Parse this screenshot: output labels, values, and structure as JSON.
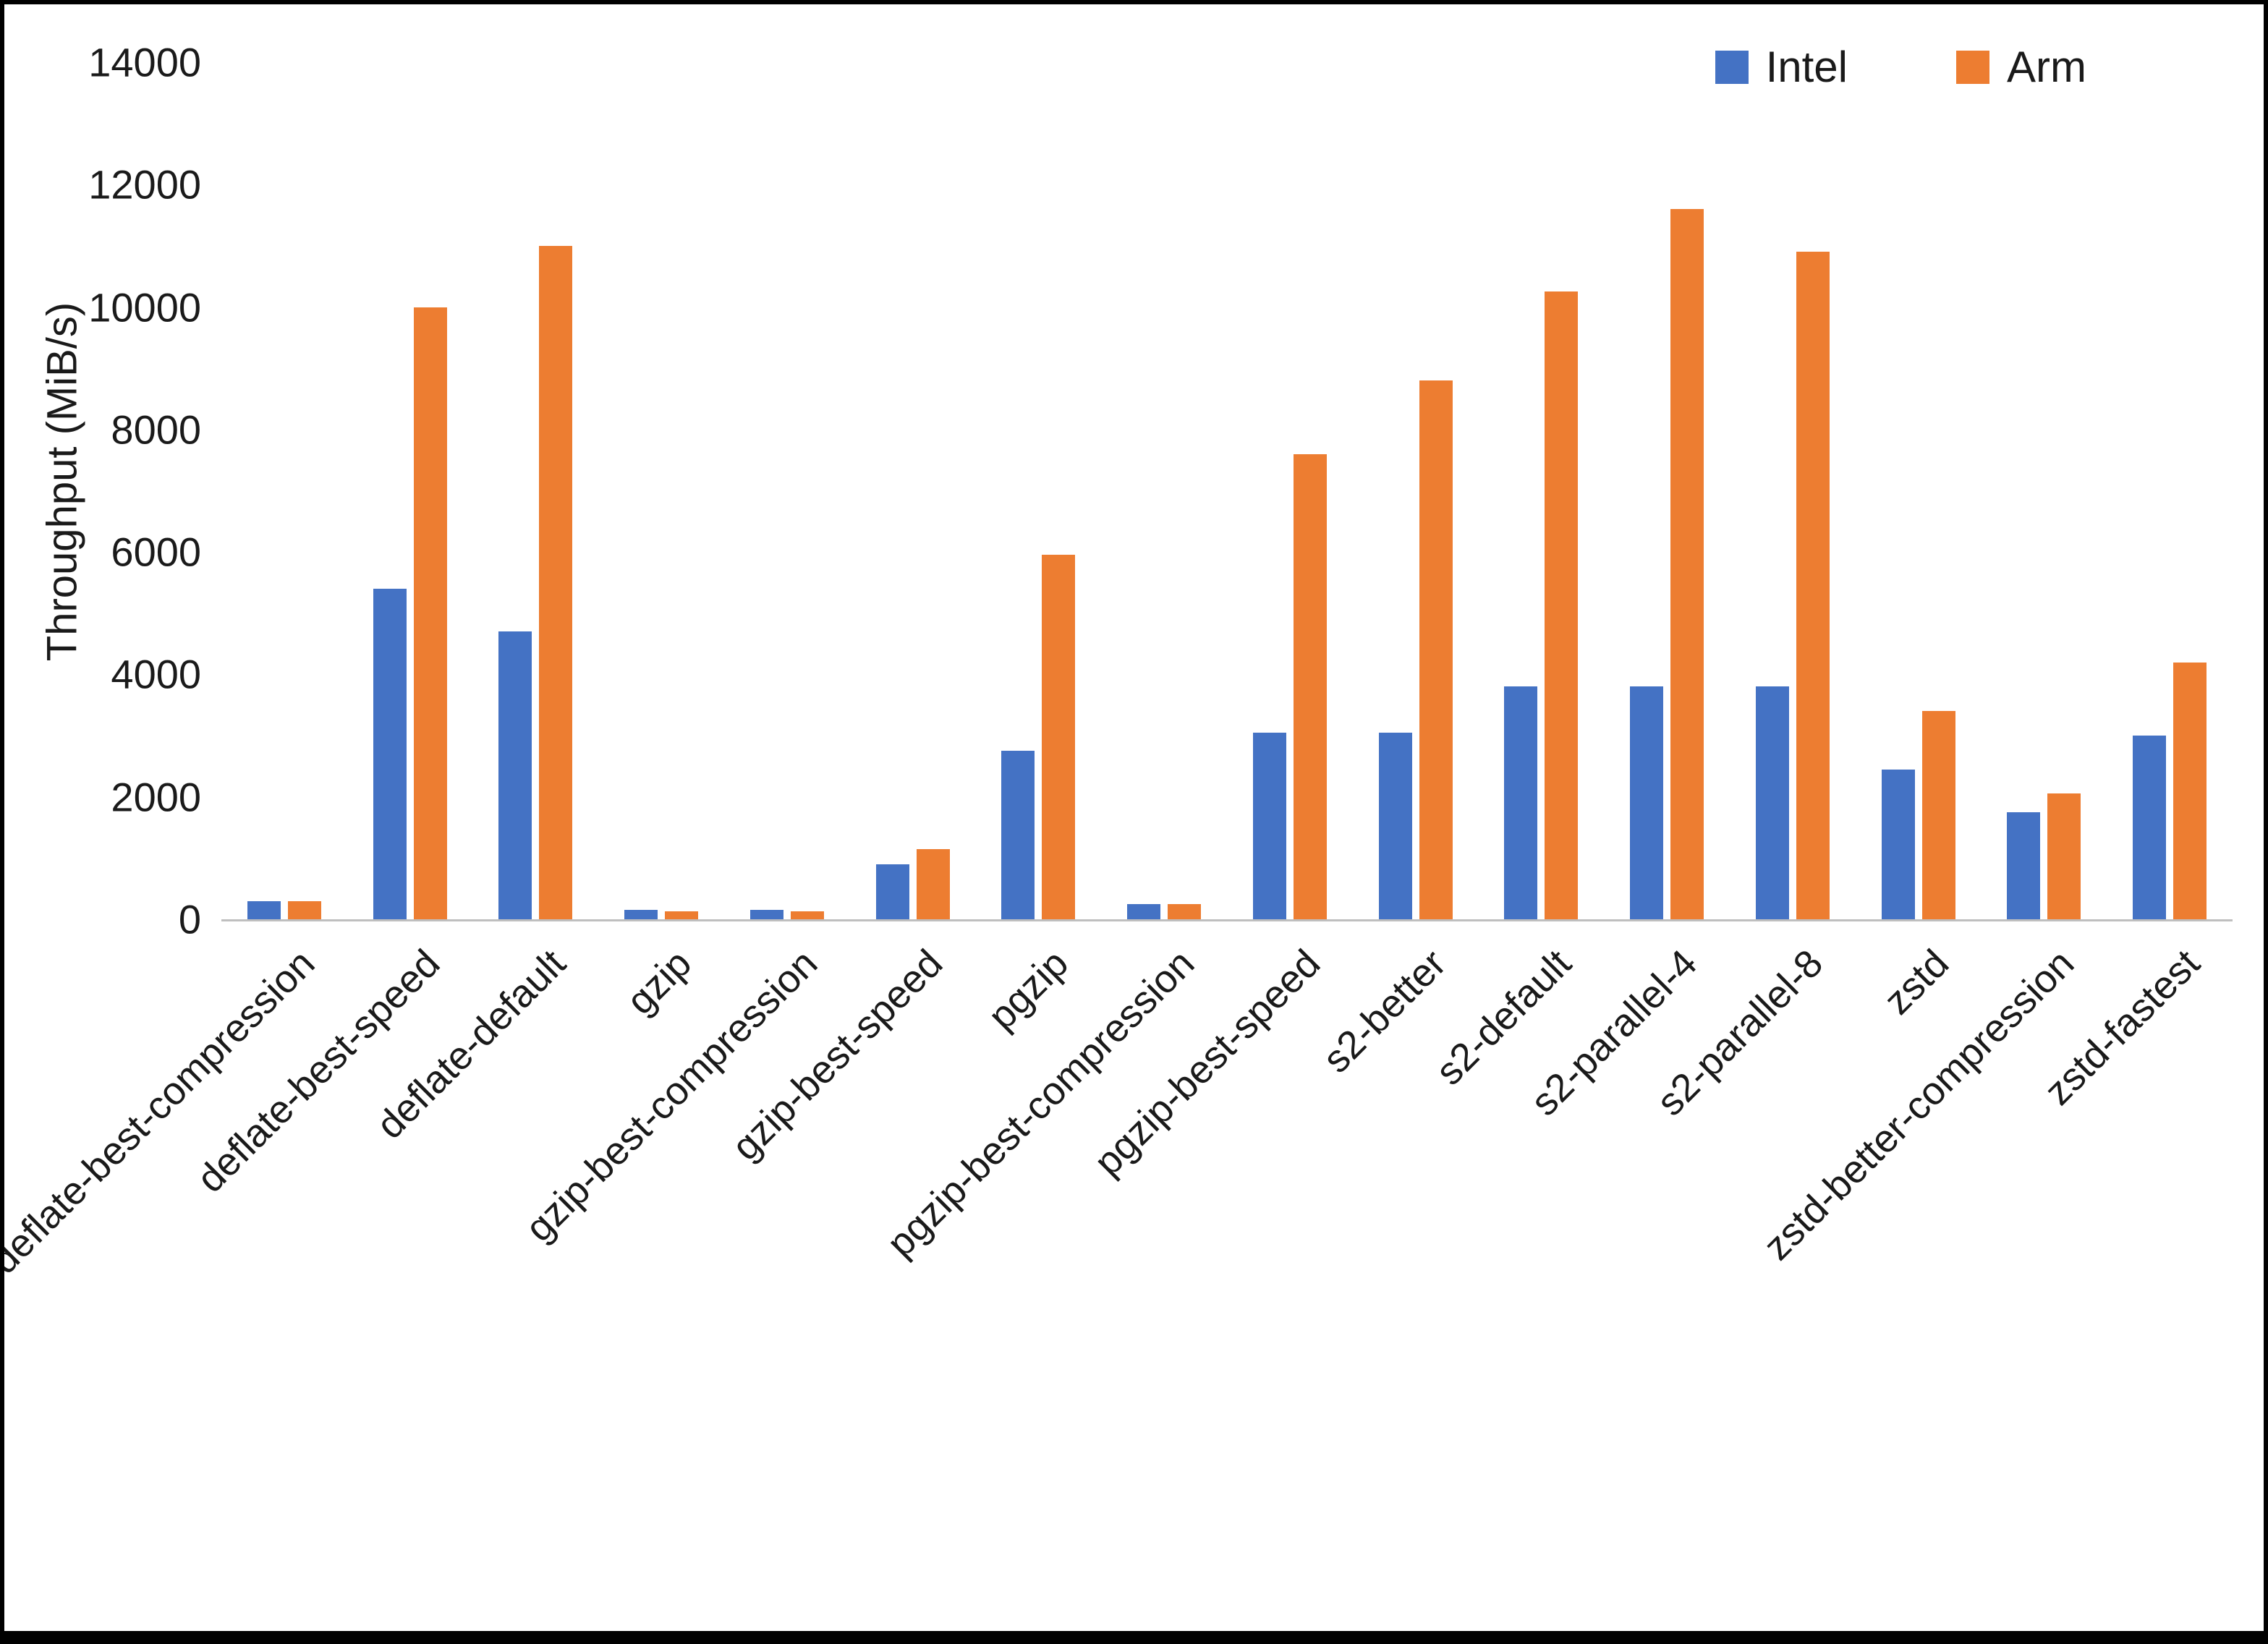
{
  "chart_data": {
    "type": "bar",
    "title": "",
    "xlabel": "",
    "ylabel": "Throughput (MiB/s)",
    "ylim": [
      0,
      14000
    ],
    "ytick_step": 2000,
    "grid": false,
    "legend_position": "top-right",
    "categories": [
      "deflate-best-compression",
      "deflate-best-speed",
      "deflate-default",
      "gzip",
      "gzip-best-compression",
      "gzip-best-speed",
      "pgzip",
      "pgzip-best-compression",
      "pgzip-best-speed",
      "s2-better",
      "s2-default",
      "s2-parallel-4",
      "s2-parallel-8",
      "zstd",
      "zstd-better-compression",
      "zstd-fastest"
    ],
    "series": [
      {
        "name": "Intel",
        "color": "#4472C4",
        "values": [
          300,
          5400,
          4700,
          150,
          150,
          900,
          2750,
          250,
          3050,
          3050,
          3800,
          3800,
          3800,
          2450,
          1750,
          3000
        ]
      },
      {
        "name": "Arm",
        "color": "#ED7D31",
        "values": [
          300,
          10000,
          11000,
          130,
          130,
          1150,
          5950,
          250,
          7600,
          8800,
          10250,
          11600,
          10900,
          3400,
          2050,
          4200
        ]
      }
    ]
  }
}
